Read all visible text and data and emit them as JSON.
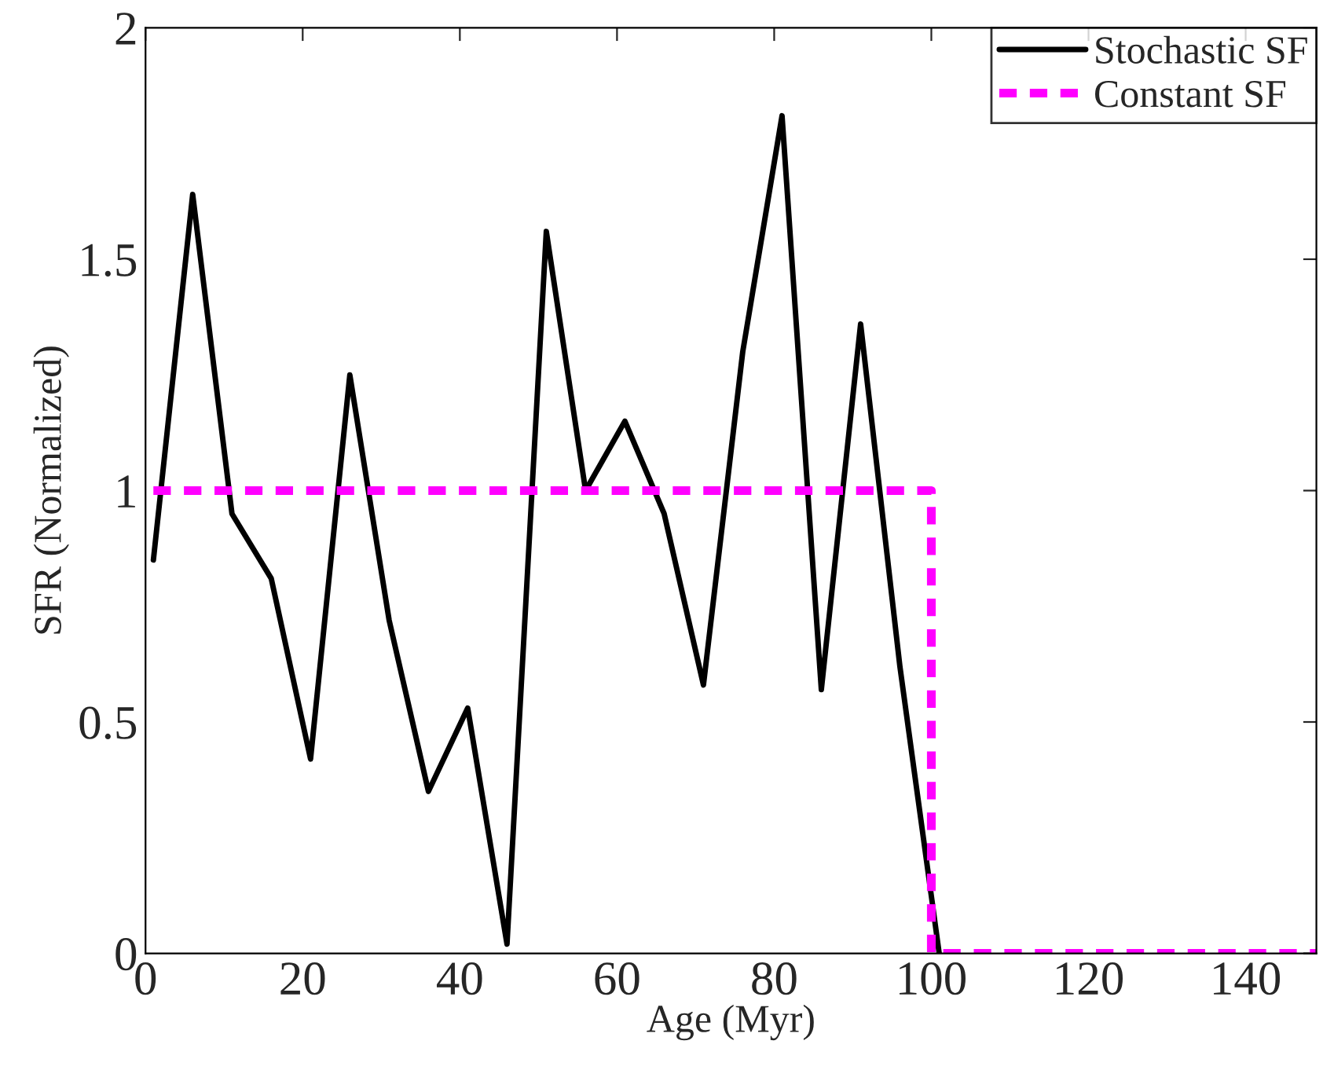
{
  "chart_data": {
    "type": "line",
    "xlabel": "Age (Myr)",
    "ylabel": "SFR (Normalized)",
    "xlim": [
      0,
      149
    ],
    "xticks": [
      0,
      20,
      40,
      60,
      80,
      100,
      120,
      140
    ],
    "ylim": [
      0,
      2
    ],
    "yticks": [
      0,
      0.5,
      1,
      1.5,
      2
    ],
    "grid": false,
    "legend": "top right",
    "marker": "none",
    "series": [
      {
        "name": "Stochastic SF",
        "color": "#000000",
        "line_style": "solid",
        "x": [
          1,
          6,
          11,
          16,
          21,
          26,
          31,
          36,
          41,
          46,
          51,
          56,
          61,
          66,
          71,
          76,
          81,
          86,
          91,
          96,
          101
        ],
        "values": [
          0.85,
          1.64,
          0.95,
          0.81,
          0.42,
          1.25,
          0.72,
          0.35,
          0.53,
          0.02,
          1.56,
          1.0,
          1.15,
          0.95,
          0.58,
          1.3,
          1.81,
          0.57,
          1.36,
          0.62,
          0
        ]
      },
      {
        "name": "Constant SF",
        "color": "#ff00ff",
        "line_style": "dashed",
        "type": "step",
        "x": [
          1,
          100,
          100,
          149
        ],
        "values": [
          1,
          1,
          0,
          0
        ]
      }
    ]
  }
}
